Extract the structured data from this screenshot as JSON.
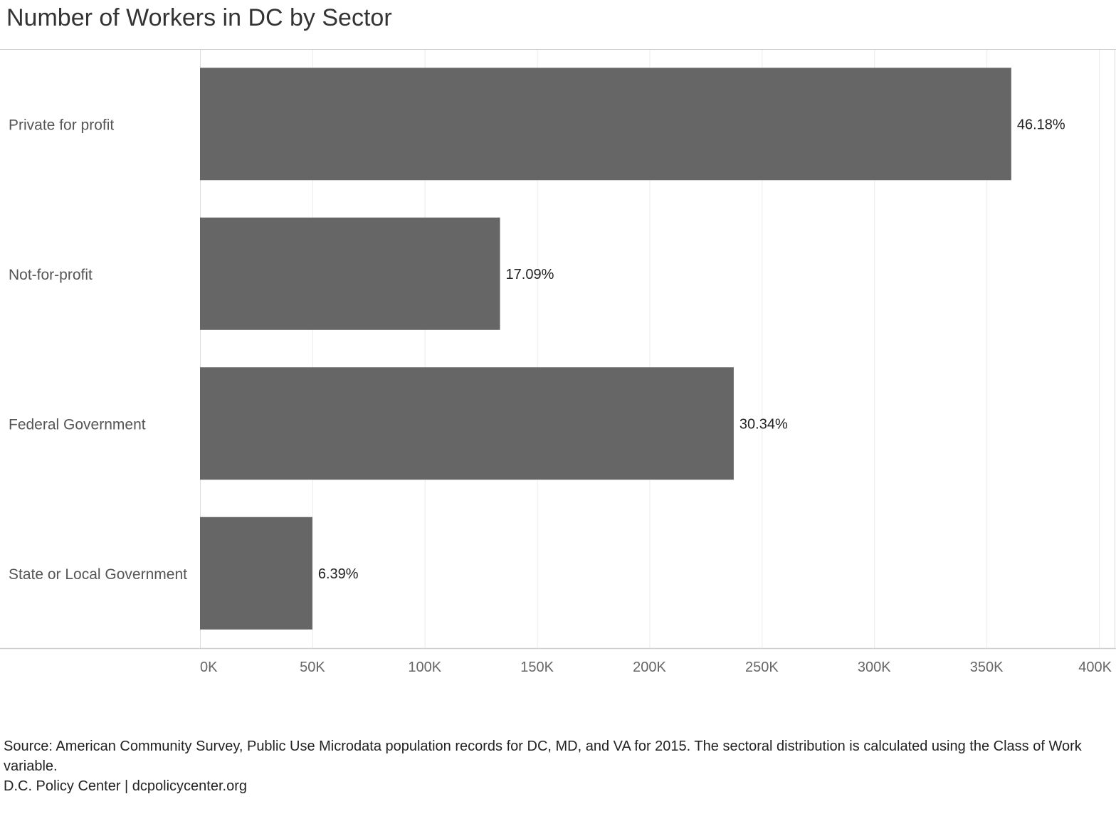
{
  "chart_data": {
    "type": "bar",
    "orientation": "horizontal",
    "title": "Number of Workers in DC by Sector",
    "categories": [
      "Private for profit",
      "Not-for-profit",
      "Federal Government",
      "State or Local Government"
    ],
    "values": [
      361000,
      133500,
      237500,
      50000
    ],
    "data_labels": [
      "46.18%",
      "17.09%",
      "30.34%",
      "6.39%"
    ],
    "xlim": [
      0,
      400000
    ],
    "x_ticks": [
      0,
      50000,
      100000,
      150000,
      200000,
      250000,
      300000,
      350000,
      400000
    ],
    "x_tick_labels": [
      "0K",
      "50K",
      "100K",
      "150K",
      "200K",
      "250K",
      "300K",
      "350K",
      "400K"
    ],
    "xlabel": "",
    "ylabel": "",
    "grid": "vertical",
    "bar_color": "#666666"
  },
  "footer": {
    "source": "Source: American Community Survey, Public Use Microdata population records for DC, MD, and VA for 2015. The sectoral distribution is calculated using the Class of Work variable.",
    "credit": "D.C. Policy Center | dcpolicycenter.org"
  }
}
